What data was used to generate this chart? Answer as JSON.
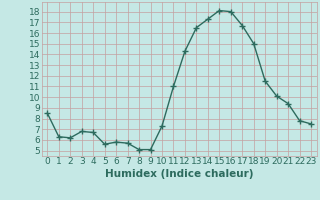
{
  "x": [
    0,
    1,
    2,
    3,
    4,
    5,
    6,
    7,
    8,
    9,
    10,
    11,
    12,
    13,
    14,
    15,
    16,
    17,
    18,
    19,
    20,
    21,
    22,
    23
  ],
  "y": [
    8.5,
    6.3,
    6.2,
    6.8,
    6.7,
    5.6,
    5.8,
    5.7,
    5.1,
    5.1,
    7.3,
    11.0,
    14.3,
    16.5,
    17.3,
    18.1,
    18.0,
    16.7,
    15.0,
    11.5,
    10.1,
    9.4,
    7.8,
    7.5
  ],
  "line_color": "#2d6b5e",
  "bg_color": "#c5e8e5",
  "grid_color": "#c4a0a0",
  "xlabel": "Humidex (Indice chaleur)",
  "ylabel_ticks": [
    5,
    6,
    7,
    8,
    9,
    10,
    11,
    12,
    13,
    14,
    15,
    16,
    17,
    18
  ],
  "ylim": [
    4.5,
    18.9
  ],
  "xlim": [
    -0.5,
    23.5
  ],
  "marker": "+",
  "marker_size": 4,
  "line_width": 1.0,
  "xlabel_fontsize": 7.5,
  "tick_fontsize": 6.5,
  "label_color": "#2d6b5e"
}
